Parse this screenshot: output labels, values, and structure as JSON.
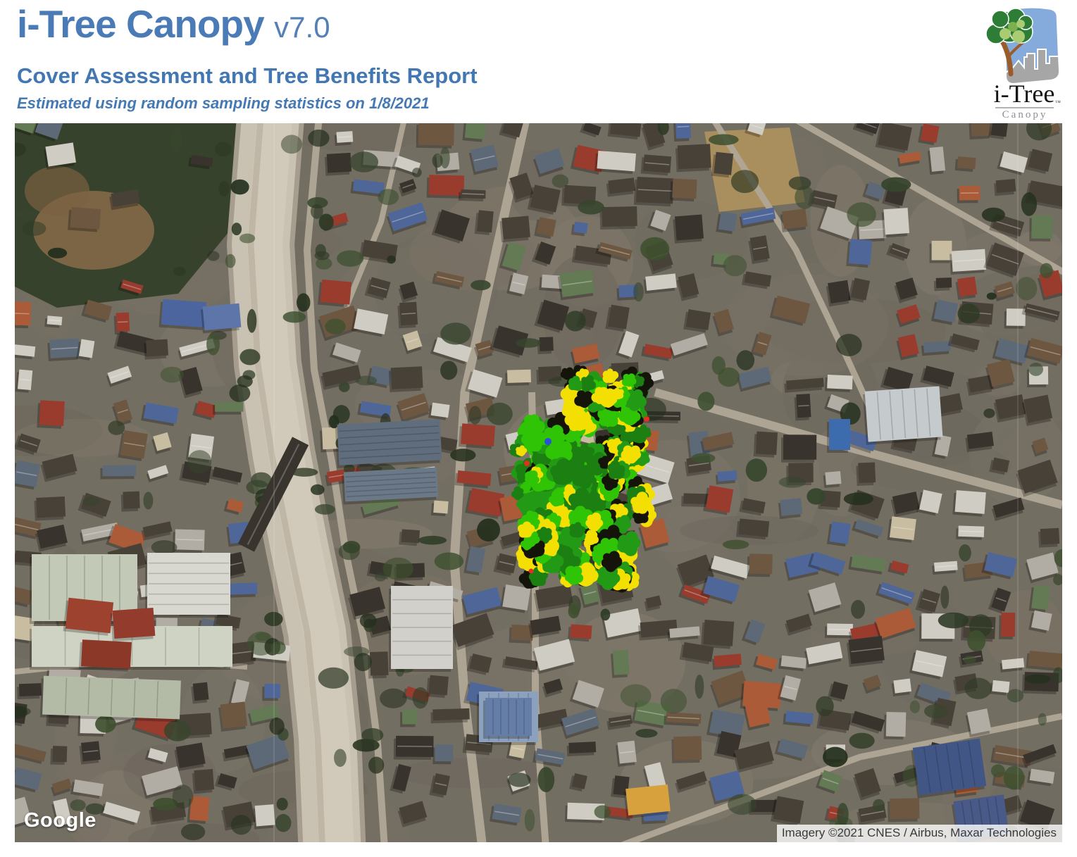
{
  "header": {
    "title": "i-Tree Canopy",
    "version": "v7.0",
    "subtitle": "Cover Assessment and Tree Benefits Report",
    "note": "Estimated using random sampling statistics on 1/8/2021",
    "accent_color": "#4579b4"
  },
  "logo": {
    "brand": "i-Tree",
    "tm": "™",
    "product": "Canopy"
  },
  "map": {
    "watermark": "Google",
    "attribution": "Imagery ©2021 CNES / Airbus, Maxar Technologies",
    "overlay": {
      "description": "canopy survey point cluster",
      "colors": {
        "bright_green": "#2fc405",
        "mid_green": "#239a16",
        "dark_green": "#1c7f12",
        "yellow": "#f3e002",
        "black": "#14140a",
        "blue": "#2a50d8",
        "red": "#e03020"
      }
    }
  }
}
